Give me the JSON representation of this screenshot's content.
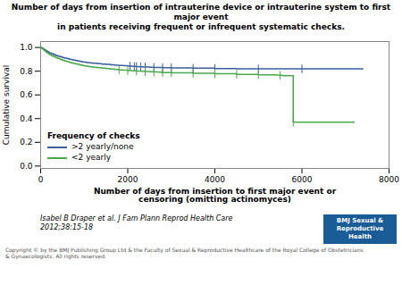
{
  "chart_data": {
    "type": "step",
    "title": "Number of days from insertion of intrauterine device or intrauterine system to first major event",
    "subtitle": "in patients receiving frequent or infrequent systematic checks.",
    "xlabel": "Number of days from insertion to first major event or\ncensoring (omitting actinomyces)",
    "ylabel": "Cumulative survival",
    "caption": [
      "Isabel B Draper et al. J Fam Plann Reprod Health Care",
      "2012;38:15-18"
    ],
    "copyright": "Copyright © by the BMJ Publishing Group Ltd & the Faculty of Sexual & Reproductive Healthcare of the Royal College of Obstetricians\n& Gynaecologists. All rights reserved.",
    "logo_text": [
      "BMJ Sexual &",
      "Reproductive",
      "Health"
    ],
    "xlim": [
      0,
      8000
    ],
    "ylim": [
      -0.02,
      1.05
    ],
    "xticks": [
      0,
      2000,
      4000,
      6000,
      8000
    ],
    "yticks": [
      {
        "value": 0.0,
        "label": "0.0"
      },
      0.2,
      0.4,
      0.6,
      0.8,
      {
        "value": 1.0,
        "label": "1.0"
      }
    ],
    "legend": "lower left",
    "legend_title": "Frequency of checks",
    "series": [
      {
        "name": ">2 yearly/none",
        "color": "#3a5f9e",
        "x": [
          0,
          30,
          60,
          90,
          120,
          150,
          180,
          210,
          250,
          300,
          350,
          400,
          450,
          500,
          550,
          600,
          650,
          700,
          750,
          800,
          850,
          900,
          950,
          1000,
          1050,
          1100,
          1150,
          1200,
          1300,
          1400,
          1500,
          1600,
          1700,
          1800,
          1900,
          2000,
          2050,
          2100,
          2150,
          2200,
          2250,
          2300,
          2350,
          2400,
          2500,
          2600,
          2700,
          2800,
          2900,
          3000,
          3500,
          4000,
          4500,
          5000,
          5500,
          5600,
          5700,
          5800,
          5900,
          6000,
          6500,
          7000,
          7400
        ],
        "values": [
          1.0,
          0.993,
          0.986,
          0.979,
          0.972,
          0.965,
          0.958,
          0.952,
          0.946,
          0.938,
          0.932,
          0.926,
          0.921,
          0.915,
          0.91,
          0.906,
          0.901,
          0.897,
          0.893,
          0.889,
          0.886,
          0.882,
          0.879,
          0.876,
          0.873,
          0.871,
          0.869,
          0.867,
          0.863,
          0.86,
          0.857,
          0.854,
          0.851,
          0.848,
          0.846,
          0.844,
          0.843,
          0.841,
          0.84,
          0.839,
          0.838,
          0.837,
          0.836,
          0.835,
          0.833,
          0.832,
          0.831,
          0.83,
          0.829,
          0.828,
          0.825,
          0.823,
          0.821,
          0.82,
          0.82,
          0.82,
          0.82,
          0.82,
          0.82,
          0.82,
          0.82,
          0.82,
          0.82
        ],
        "censor_x": [
          2050,
          2150,
          2200,
          2300,
          2400,
          2600,
          2800,
          3000,
          3500,
          4000,
          5000,
          6000
        ],
        "censor_y": [
          0.843,
          0.84,
          0.839,
          0.837,
          0.835,
          0.832,
          0.83,
          0.828,
          0.825,
          0.823,
          0.82,
          0.82
        ]
      },
      {
        "name": "<2 yearly",
        "color": "#4aaa4a",
        "x": [
          0,
          30,
          60,
          90,
          120,
          150,
          180,
          210,
          250,
          300,
          350,
          400,
          450,
          500,
          550,
          600,
          650,
          700,
          750,
          800,
          850,
          900,
          950,
          1000,
          1050,
          1100,
          1150,
          1200,
          1300,
          1400,
          1500,
          1600,
          1700,
          1800,
          1900,
          2000,
          2100,
          2200,
          2300,
          2400,
          2500,
          2600,
          2700,
          2800,
          2900,
          3000,
          3500,
          4000,
          4500,
          5000,
          5400,
          5500,
          5550,
          5560,
          5580,
          5590,
          5595,
          5800,
          6000,
          6500,
          7200
        ],
        "values": [
          1.0,
          0.99,
          0.98,
          0.971,
          0.962,
          0.954,
          0.946,
          0.938,
          0.93,
          0.921,
          0.913,
          0.906,
          0.899,
          0.892,
          0.886,
          0.88,
          0.875,
          0.87,
          0.865,
          0.861,
          0.857,
          0.853,
          0.849,
          0.845,
          0.842,
          0.839,
          0.837,
          0.834,
          0.83,
          0.826,
          0.822,
          0.818,
          0.815,
          0.811,
          0.808,
          0.805,
          0.803,
          0.801,
          0.799,
          0.797,
          0.795,
          0.793,
          0.791,
          0.789,
          0.788,
          0.787,
          0.782,
          0.778,
          0.774,
          0.77,
          0.767,
          0.765,
          0.764,
          0.763,
          0.762,
          0.762,
          0.762,
          0.37,
          0.37,
          0.37,
          0.37
        ],
        "censor_x": [
          1800,
          2000,
          2200,
          2400,
          2600,
          2800,
          3000,
          3500,
          4000,
          4500,
          5000,
          5500,
          5800
        ],
        "censor_y": [
          0.811,
          0.805,
          0.801,
          0.797,
          0.793,
          0.789,
          0.787,
          0.782,
          0.778,
          0.774,
          0.77,
          0.765,
          0.37
        ]
      }
    ]
  }
}
